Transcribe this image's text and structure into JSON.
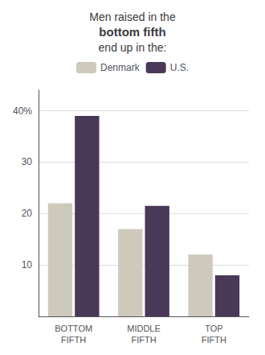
{
  "chart_data": {
    "type": "bar",
    "title": "Men raised in the\nbottom fifth\nend up in the:",
    "categories": [
      "BOTTOM\nFIFTH",
      "MIDDLE\nFIFTH",
      "TOP\nFIFTH"
    ],
    "series": [
      {
        "name": "Denmark",
        "color": "#cdc9bc",
        "values": [
          22,
          17,
          12
        ]
      },
      {
        "name": "U.S.",
        "color": "#4a3858",
        "values": [
          39,
          21.5,
          8
        ]
      }
    ],
    "ylim": [
      0,
      44
    ],
    "yticks": [
      10,
      20,
      30,
      {
        "value": 40,
        "label": "40%"
      }
    ],
    "grid": true,
    "legend": "top"
  }
}
